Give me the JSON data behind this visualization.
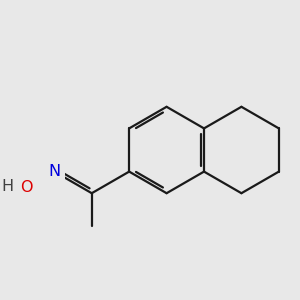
{
  "bg_color": "#e8e8e8",
  "bond_color": "#1a1a1a",
  "N_color": "#0000dd",
  "O_color": "#dd0000",
  "H_color": "#404040",
  "line_width": 1.6,
  "dbo": 0.052,
  "font_size": 11.5,
  "figsize": [
    3.0,
    3.0
  ],
  "dpi": 100,
  "xlim": [
    -1.7,
    2.2
  ],
  "ylim": [
    -1.6,
    1.6
  ]
}
